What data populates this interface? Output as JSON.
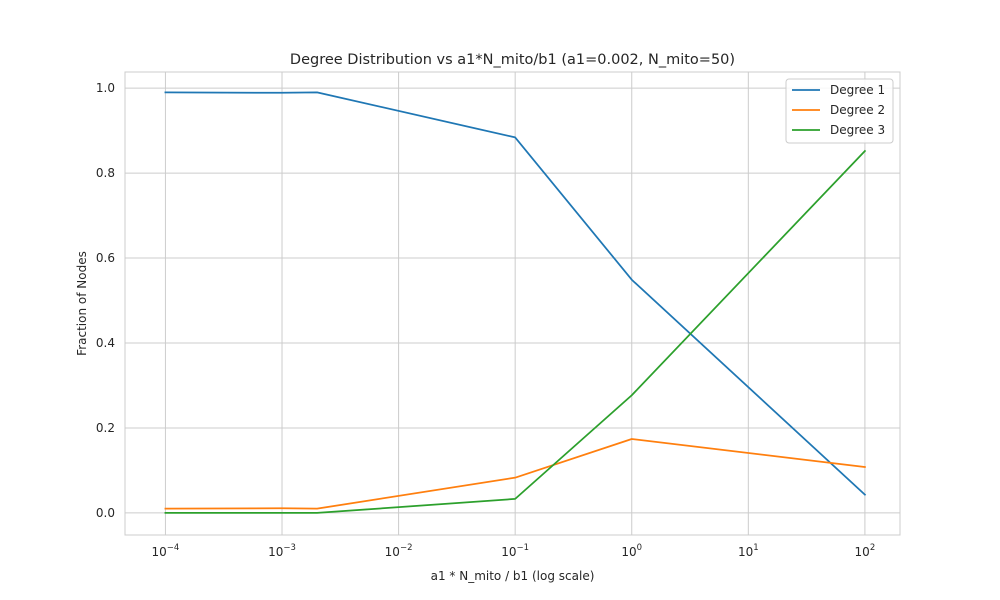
{
  "chart_data": {
    "type": "line",
    "title": "Degree Distribution vs a1*N_mito/b1 (a1=0.002, N_mito=50)",
    "xlabel": "a1 * N_mito / b1 (log scale)",
    "ylabel": "Fraction of Nodes",
    "xscale": "log",
    "xlim": [
      4.5e-05,
      200
    ],
    "ylim": [
      -0.052,
      1.038
    ],
    "xticks": [
      0.0001,
      0.001,
      0.01,
      0.1,
      1,
      10,
      100
    ],
    "xtick_labels": [
      {
        "base": "10",
        "exp": "−4"
      },
      {
        "base": "10",
        "exp": "−3"
      },
      {
        "base": "10",
        "exp": "−2"
      },
      {
        "base": "10",
        "exp": "−1"
      },
      {
        "base": "10",
        "exp": "0"
      },
      {
        "base": "10",
        "exp": "1"
      },
      {
        "base": "10",
        "exp": "2"
      }
    ],
    "yticks": [
      0.0,
      0.2,
      0.4,
      0.6,
      0.8,
      1.0
    ],
    "ytick_labels": [
      "0.0",
      "0.2",
      "0.4",
      "0.6",
      "0.8",
      "1.0"
    ],
    "grid": true,
    "legend_position": "top-right",
    "x": [
      0.0001,
      0.001,
      0.002,
      0.1,
      1,
      100
    ],
    "series": [
      {
        "name": "Degree 1",
        "color": "#1f77b4",
        "values": [
          0.99,
          0.989,
          0.99,
          0.884,
          0.549,
          0.043
        ]
      },
      {
        "name": "Degree 2",
        "color": "#ff7f0e",
        "values": [
          0.01,
          0.011,
          0.01,
          0.083,
          0.174,
          0.108
        ]
      },
      {
        "name": "Degree 3",
        "color": "#2ca02c",
        "values": [
          0.0,
          0.0,
          0.0,
          0.033,
          0.277,
          0.852
        ]
      }
    ]
  }
}
